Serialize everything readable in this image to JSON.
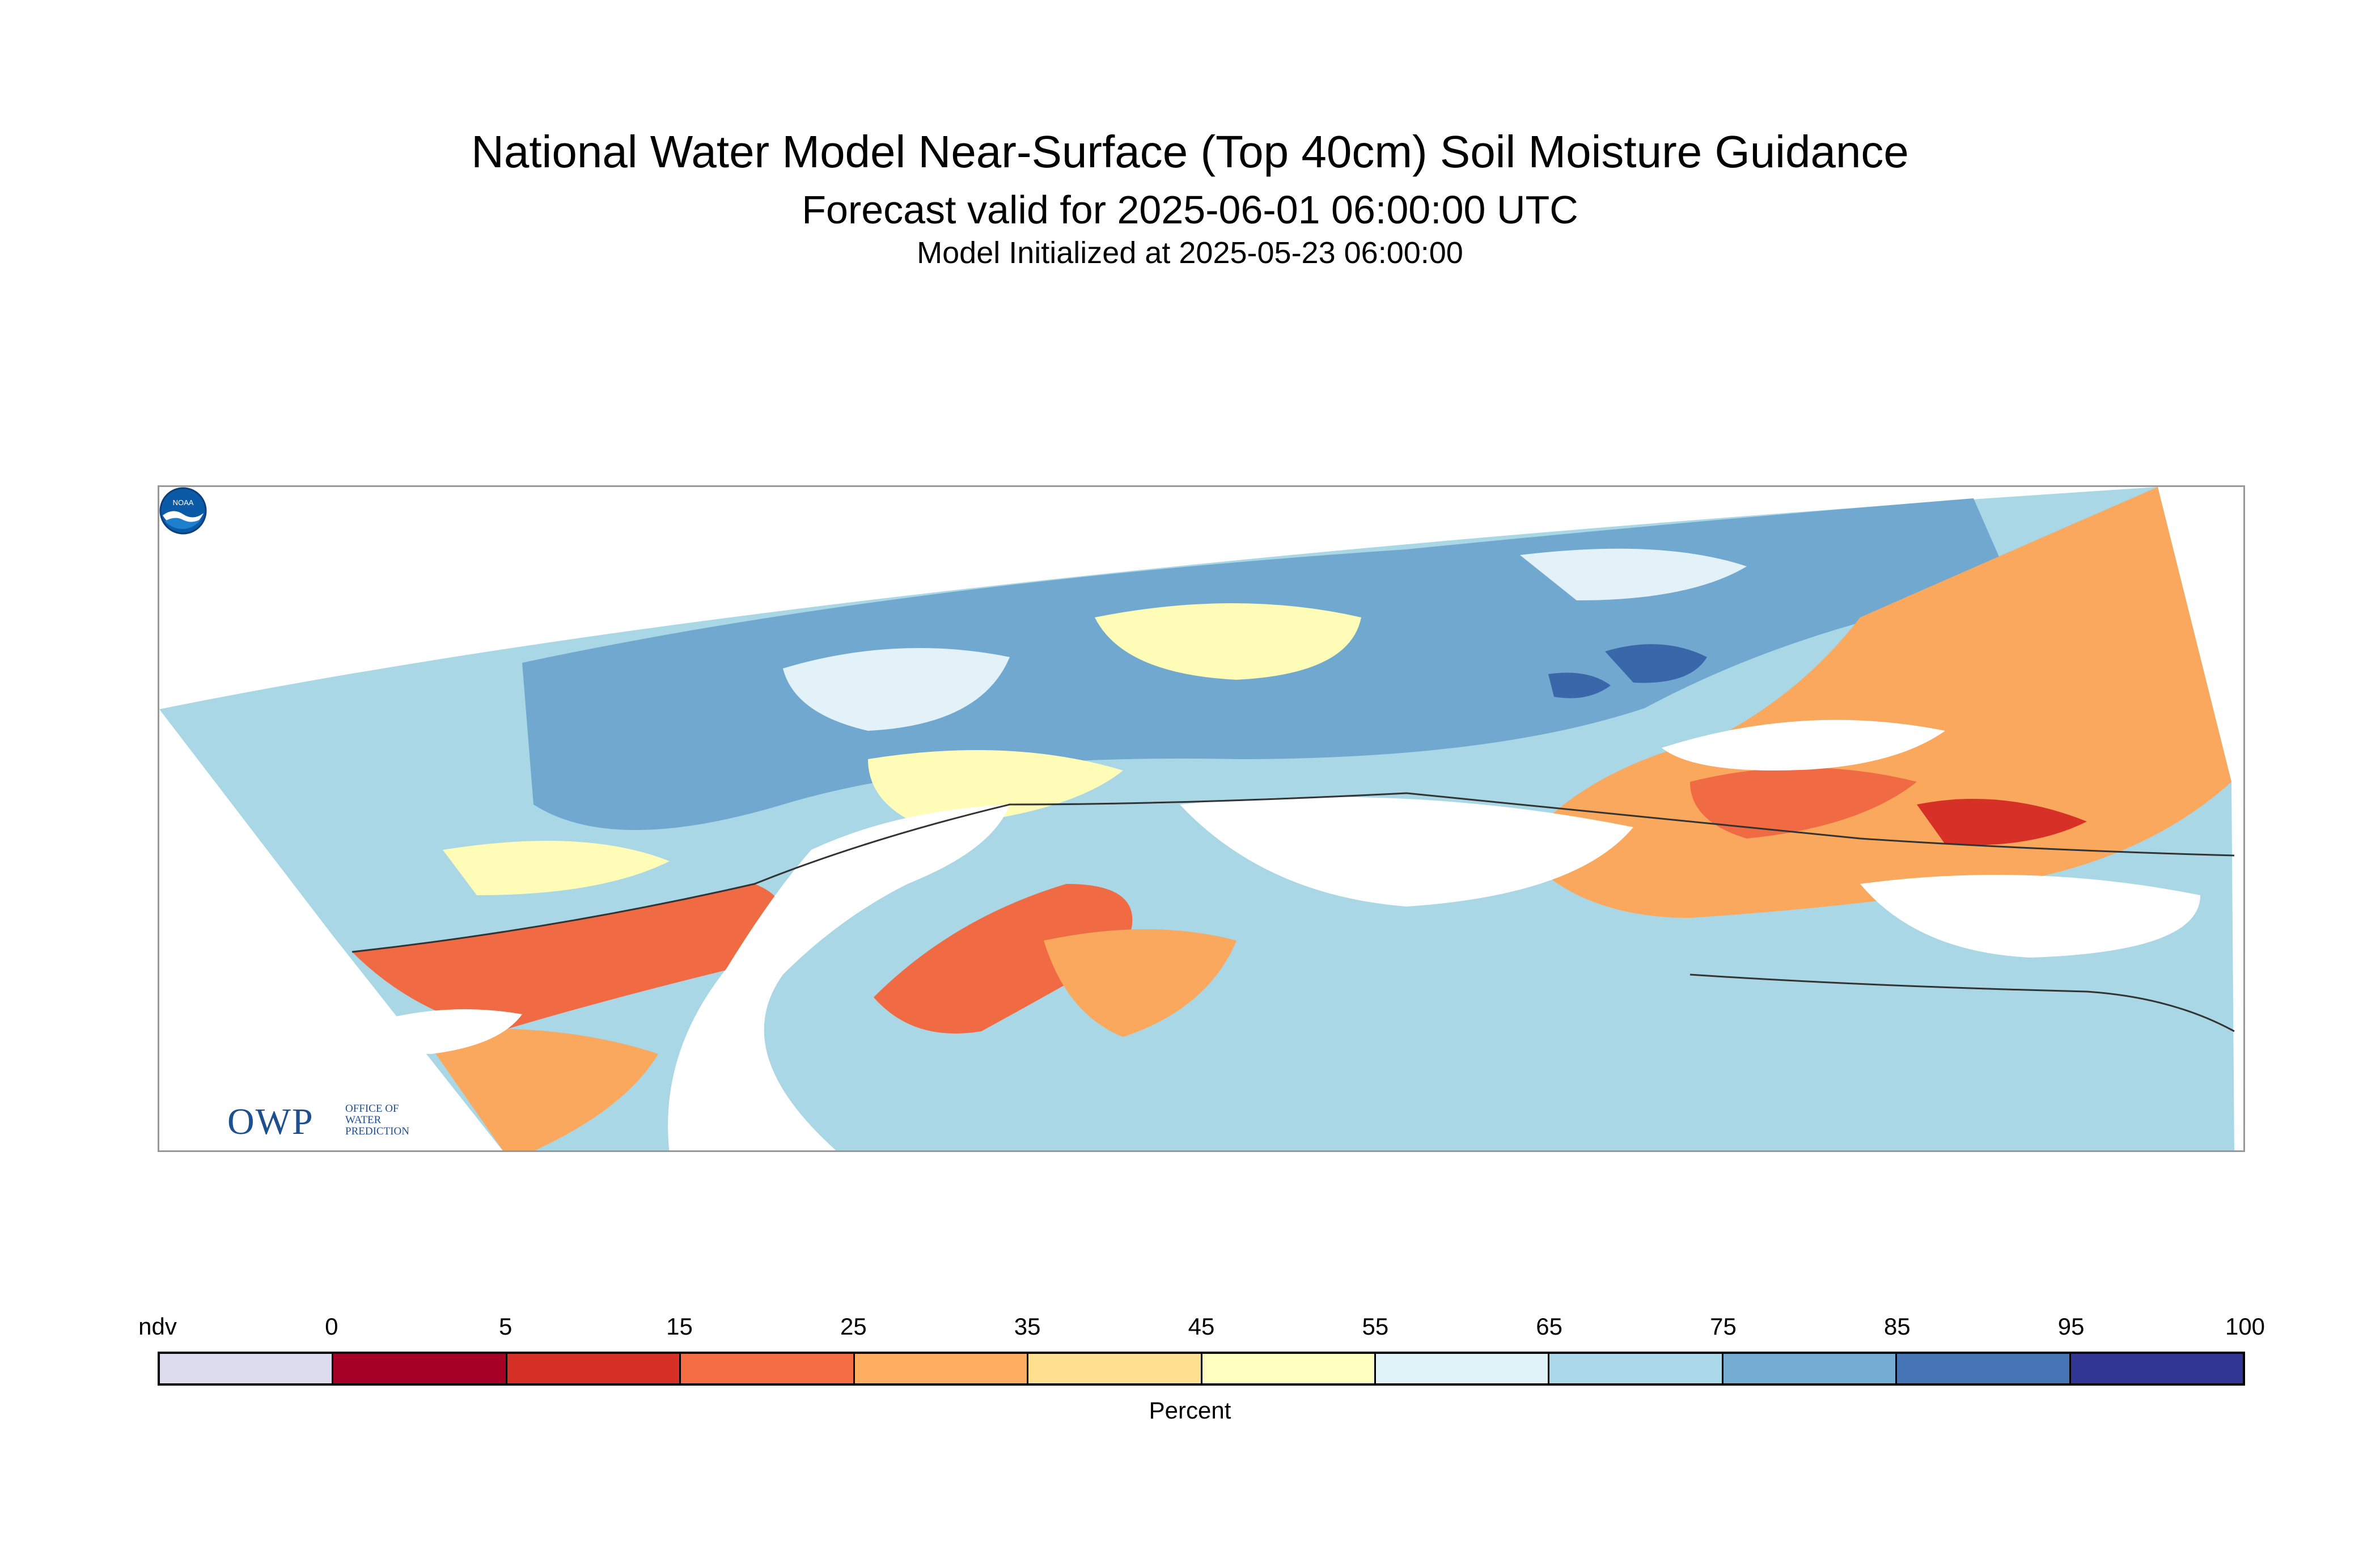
{
  "title": "National Water Model Near-Surface (Top 40cm) Soil Moisture Guidance",
  "subtitle": "Forecast valid for 2025-06-01 06:00:00 UTC",
  "init_line": "Model Initialized at 2025-05-23 06:00:00",
  "map": {
    "region_fill_colors": {
      "very_wet": "#3a67aa",
      "wet": "#71a8d0",
      "moist": "#a9d7e6",
      "light_moist": "#e3f2f8",
      "dry_neutral": "#fffcb8",
      "dry": "#fbd986",
      "drier": "#f9a85d",
      "very_dry": "#f06b44",
      "extreme_dry": "#d73027",
      "no_data": "#ffffff"
    }
  },
  "logos": {
    "owp": {
      "mark": "OWP",
      "sub_lines": [
        "Office of",
        "Water",
        "Prediction"
      ],
      "icon": "owp-logo"
    },
    "noaa": {
      "text": "NOAA",
      "icon": "noaa-logo"
    }
  },
  "legend": {
    "unit_label": "Percent",
    "tick_labels": [
      "ndv",
      "0",
      "5",
      "15",
      "25",
      "35",
      "45",
      "55",
      "65",
      "75",
      "85",
      "95",
      "100"
    ],
    "colors": [
      "#dcdcee",
      "#a50026",
      "#d73027",
      "#f46d43",
      "#fdae61",
      "#fee090",
      "#ffffbf",
      "#e0f3f8",
      "#abd9e9",
      "#74add1",
      "#4575b4",
      "#313695"
    ]
  }
}
